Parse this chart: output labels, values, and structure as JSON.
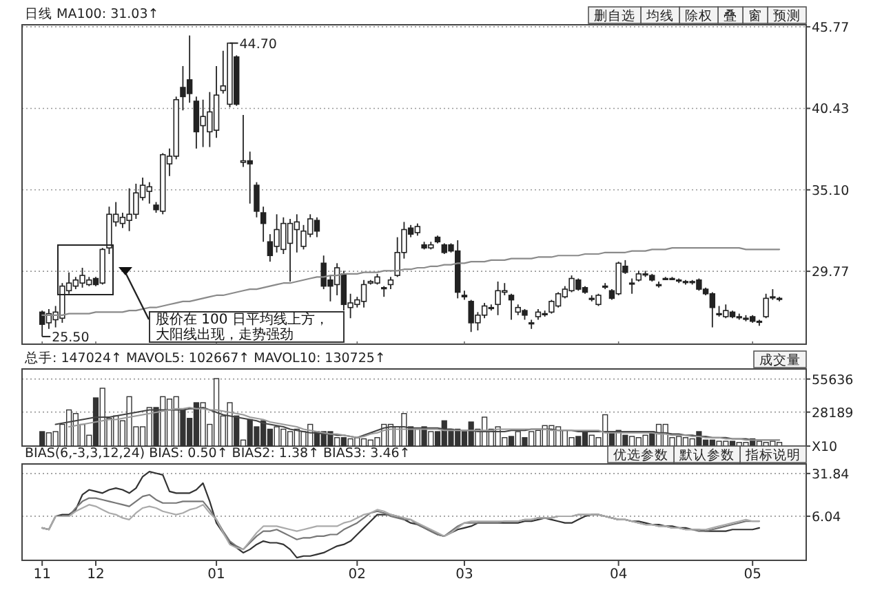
{
  "chart_data": [
    {
      "type": "candlestick",
      "title": "日线  MA100: 31.03↑",
      "categories": [
        "11",
        null,
        null,
        null,
        null,
        null,
        null,
        null,
        "12",
        null,
        null,
        null,
        null,
        null,
        null,
        null,
        null,
        null,
        null,
        null,
        null,
        null,
        null,
        null,
        null,
        null,
        "01",
        null,
        null,
        null,
        null,
        null,
        null,
        null,
        null,
        null,
        null,
        null,
        null,
        null,
        null,
        null,
        null,
        null,
        null,
        null,
        null,
        "02",
        null,
        null,
        null,
        null,
        null,
        null,
        null,
        null,
        null,
        null,
        null,
        null,
        null,
        null,
        null,
        "03",
        null,
        null,
        null,
        null,
        null,
        null,
        null,
        null,
        null,
        null,
        null,
        null,
        null,
        null,
        null,
        null,
        null,
        null,
        null,
        null,
        null,
        null,
        "04",
        null,
        null,
        null,
        null,
        null,
        null,
        null,
        null,
        null,
        null,
        null,
        null,
        null,
        null,
        null,
        null,
        null,
        null,
        null,
        "05",
        null,
        null,
        null,
        null
      ],
      "ohlc": [
        [
          27.1,
          27.2,
          25.5,
          26.3
        ],
        [
          26.4,
          27.3,
          26.0,
          27.0
        ],
        [
          26.6,
          27.5,
          26.1,
          27.1
        ],
        [
          26.7,
          29.0,
          26.4,
          28.8
        ],
        [
          28.5,
          29.7,
          28.3,
          29.0
        ],
        [
          28.8,
          29.4,
          28.6,
          29.2
        ],
        [
          29.0,
          30.0,
          28.7,
          29.5
        ],
        [
          28.9,
          29.4,
          28.8,
          29.2
        ],
        [
          29.3,
          29.4,
          28.8,
          28.9
        ],
        [
          29.0,
          31.3,
          28.9,
          31.2
        ],
        [
          31.3,
          34.0,
          30.9,
          33.5
        ],
        [
          33.0,
          34.3,
          32.7,
          33.5
        ],
        [
          32.9,
          33.6,
          32.6,
          33.3
        ],
        [
          33.1,
          35.2,
          32.4,
          33.5
        ],
        [
          33.5,
          35.5,
          33.2,
          34.9
        ],
        [
          34.6,
          35.9,
          34.4,
          35.4
        ],
        [
          35.0,
          35.6,
          34.2,
          35.3
        ],
        [
          34.1,
          34.3,
          33.6,
          33.8
        ],
        [
          33.7,
          37.5,
          33.5,
          37.4
        ],
        [
          36.8,
          37.8,
          36.0,
          37.3
        ],
        [
          37.3,
          41.2,
          37.1,
          41.0
        ],
        [
          41.8,
          43.2,
          40.3,
          41.2
        ],
        [
          42.3,
          45.2,
          40.8,
          41.4
        ],
        [
          40.9,
          41.2,
          37.8,
          38.9
        ],
        [
          39.3,
          41.0,
          37.9,
          39.9
        ],
        [
          38.9,
          41.5,
          37.9,
          40.2
        ],
        [
          39.0,
          43.2,
          38.5,
          41.3
        ],
        [
          41.6,
          44.2,
          41.4,
          41.9
        ],
        [
          40.7,
          44.7,
          40.5,
          44.7
        ],
        [
          43.8,
          43.9,
          40.6,
          40.7
        ],
        [
          36.9,
          40.0,
          36.6,
          37.0
        ],
        [
          37.0,
          37.6,
          34.2,
          36.8
        ],
        [
          35.4,
          35.6,
          33.3,
          33.7
        ],
        [
          33.6,
          34.0,
          31.7,
          32.9
        ],
        [
          31.7,
          32.2,
          30.4,
          30.8
        ],
        [
          31.4,
          33.5,
          31.0,
          32.5
        ],
        [
          31.2,
          33.3,
          30.9,
          32.9
        ],
        [
          31.6,
          33.2,
          29.1,
          32.9
        ],
        [
          32.5,
          33.5,
          31.0,
          33.0
        ],
        [
          31.4,
          32.8,
          31.2,
          32.4
        ],
        [
          32.2,
          33.5,
          32.0,
          33.2
        ],
        [
          33.1,
          33.3,
          32.0,
          32.4
        ],
        [
          30.3,
          30.8,
          28.6,
          28.8
        ],
        [
          29.2,
          29.5,
          27.8,
          28.8
        ],
        [
          28.9,
          30.3,
          28.2,
          30.0
        ],
        [
          29.6,
          29.8,
          27.2,
          27.6
        ],
        [
          27.4,
          28.3,
          26.7,
          27.7
        ],
        [
          27.6,
          28.1,
          27.4,
          27.9
        ],
        [
          27.8,
          29.2,
          27.4,
          28.9
        ],
        [
          29.0,
          29.2,
          28.9,
          29.1
        ],
        [
          29.0,
          29.6,
          28.9,
          29.4
        ],
        [
          28.7,
          28.8,
          28.1,
          28.7
        ],
        [
          28.9,
          29.4,
          28.6,
          29.2
        ],
        [
          29.5,
          32.0,
          29.4,
          31.0
        ],
        [
          31.0,
          33.0,
          30.6,
          32.5
        ],
        [
          32.6,
          32.8,
          32.0,
          32.2
        ],
        [
          32.3,
          32.9,
          32.1,
          32.7
        ],
        [
          31.5,
          31.7,
          31.2,
          31.3
        ],
        [
          31.3,
          31.7,
          31.2,
          31.5
        ],
        [
          32.0,
          32.1,
          31.6,
          31.7
        ],
        [
          31.5,
          31.6,
          30.9,
          31.0
        ],
        [
          31.5,
          31.6,
          31.0,
          31.1
        ],
        [
          31.1,
          31.8,
          28.0,
          28.4
        ],
        [
          28.2,
          28.5,
          27.9,
          28.1
        ],
        [
          27.8,
          27.9,
          25.8,
          26.4
        ],
        [
          26.4,
          27.1,
          25.9,
          26.9
        ],
        [
          26.9,
          27.7,
          26.7,
          27.5
        ],
        [
          27.4,
          27.6,
          27.2,
          27.4
        ],
        [
          27.6,
          29.1,
          26.9,
          28.5
        ],
        [
          28.4,
          29.0,
          28.2,
          28.5
        ],
        [
          28.2,
          28.3,
          26.6,
          27.9
        ],
        [
          27.1,
          27.6,
          26.9,
          27.4
        ],
        [
          27.2,
          27.3,
          26.6,
          26.9
        ],
        [
          26.4,
          26.6,
          26.0,
          26.4
        ],
        [
          26.8,
          27.3,
          26.6,
          27.1
        ],
        [
          27.0,
          27.2,
          26.8,
          27.0
        ],
        [
          27.1,
          27.9,
          27.0,
          27.8
        ],
        [
          27.5,
          28.4,
          27.4,
          28.3
        ],
        [
          28.1,
          28.8,
          28.0,
          28.6
        ],
        [
          28.5,
          29.5,
          28.4,
          29.3
        ],
        [
          29.2,
          29.3,
          28.5,
          28.6
        ],
        [
          28.7,
          28.8,
          28.3,
          28.4
        ],
        [
          28.0,
          28.2,
          27.8,
          28.0
        ],
        [
          27.6,
          28.3,
          27.5,
          28.2
        ],
        [
          28.8,
          29.0,
          28.6,
          28.8
        ],
        [
          28.5,
          28.6,
          27.9,
          28.0
        ],
        [
          28.3,
          30.4,
          28.2,
          30.3
        ],
        [
          30.1,
          30.5,
          29.6,
          29.7
        ],
        [
          29.0,
          29.3,
          28.3,
          29.0
        ],
        [
          29.2,
          29.8,
          29.1,
          29.6
        ],
        [
          29.6,
          29.8,
          29.4,
          29.6
        ],
        [
          29.5,
          29.6,
          29.1,
          29.2
        ],
        [
          28.9,
          29.1,
          28.7,
          28.9
        ],
        [
          29.3,
          29.4,
          29.2,
          29.3
        ],
        [
          29.3,
          29.4,
          29.2,
          29.3
        ],
        [
          29.2,
          29.3,
          29.0,
          29.2
        ],
        [
          29.1,
          29.2,
          28.9,
          29.1
        ],
        [
          29.1,
          29.2,
          28.9,
          29.1
        ],
        [
          29.2,
          29.3,
          28.5,
          28.6
        ],
        [
          28.6,
          28.7,
          28.2,
          28.3
        ],
        [
          28.3,
          28.4,
          26.1,
          27.4
        ],
        [
          27.0,
          27.5,
          26.8,
          27.0
        ],
        [
          26.8,
          27.6,
          26.7,
          27.2
        ],
        [
          27.1,
          27.2,
          26.7,
          26.8
        ],
        [
          26.8,
          27.0,
          26.6,
          26.8
        ],
        [
          26.7,
          26.9,
          26.5,
          26.7
        ],
        [
          26.8,
          26.9,
          26.4,
          26.5
        ],
        [
          26.5,
          26.6,
          26.2,
          26.5
        ],
        [
          26.8,
          28.3,
          26.7,
          28.0
        ],
        [
          28.1,
          28.6,
          27.9,
          28.1
        ],
        [
          28.0,
          28.1,
          27.8,
          28.0
        ]
      ],
      "series": [
        {
          "type": "line",
          "color": "#8a8a8a",
          "values": [
            26.9,
            26.9,
            26.9,
            26.9,
            27.0,
            27.0,
            27.0,
            27.0,
            27.1,
            27.1,
            27.1,
            27.1,
            27.1,
            27.2,
            27.2,
            27.3,
            27.4,
            27.4,
            27.5,
            27.6,
            27.7,
            27.8,
            27.8,
            27.9,
            28.0,
            28.1,
            28.2,
            28.2,
            28.3,
            28.4,
            28.5,
            28.6,
            28.6,
            28.7,
            28.8,
            28.9,
            29.0,
            29.0,
            29.1,
            29.2,
            29.3,
            29.4,
            29.4,
            29.5,
            29.5,
            29.6,
            29.6,
            29.6,
            29.7,
            29.7,
            29.7,
            29.8,
            29.8,
            29.8,
            29.9,
            29.9,
            30.0,
            30.0,
            30.1,
            30.1,
            30.2,
            30.2,
            30.3,
            30.3,
            30.4,
            30.4,
            30.4,
            30.5,
            30.5,
            30.5,
            30.6,
            30.6,
            30.6,
            30.6,
            30.7,
            30.7,
            30.7,
            30.8,
            30.8,
            30.8,
            30.8,
            30.9,
            30.9,
            30.9,
            31.0,
            31.0,
            31.0,
            31.0,
            31.1,
            31.1,
            31.1,
            31.2,
            31.2,
            31.2,
            31.3,
            31.3,
            31.3,
            31.3,
            31.3,
            31.3,
            31.3,
            31.3,
            31.3,
            31.3,
            31.3,
            31.2,
            31.2,
            31.2,
            31.2,
            31.2,
            31.2
          ]
        }
      ],
      "ylim": [
        25.0,
        45.9
      ],
      "yticks": [
        29.77,
        {
          "value": 35.1,
          "label": "35.10"
        },
        40.43,
        45.77
      ],
      "grid": "y",
      "tick_labels": "y",
      "annotations": [
        "删自选",
        "均线",
        "除权",
        "叠",
        "窗",
        "预测",
        "44.70",
        "25.50",
        "股价在 100 日平均线上方，大阳线出现，走势强劲"
      ]
    },
    {
      "type": "bar",
      "title": "总手: 147024↑  MAVOL5: 102667↑  MAVOL10: 130725↑",
      "categories": [
        "11",
        null,
        null,
        null,
        null,
        null,
        null,
        null,
        "12",
        null,
        null,
        null,
        null,
        null,
        null,
        null,
        null,
        null,
        null,
        null,
        null,
        null,
        null,
        null,
        null,
        null,
        "01",
        null,
        null,
        null,
        null,
        null,
        null,
        null,
        null,
        null,
        null,
        null,
        null,
        null,
        null,
        null,
        null,
        null,
        null,
        null,
        null,
        "02",
        null,
        null,
        null,
        null,
        null,
        null,
        null,
        null,
        null,
        null,
        null,
        null,
        null,
        null,
        null,
        "03",
        null,
        null,
        null,
        null,
        null,
        null,
        null,
        null,
        null,
        null,
        null,
        null,
        null,
        null,
        null,
        null,
        null,
        null,
        null,
        null,
        null,
        null,
        "04",
        null,
        null,
        null,
        null,
        null,
        null,
        null,
        null,
        null,
        null,
        null,
        null,
        null,
        null,
        null,
        null,
        null,
        null,
        null,
        "05",
        null,
        null,
        null,
        null
      ],
      "series": [
        {
          "type": "bar",
          "values": [
            12000,
            11000,
            12000,
            18000,
            30000,
            27000,
            18000,
            9000,
            40000,
            48000,
            23000,
            25000,
            21000,
            41000,
            16000,
            16000,
            32000,
            32000,
            41000,
            39000,
            41000,
            30000,
            23000,
            36000,
            36000,
            18000,
            56000,
            25000,
            36000,
            25000,
            5000,
            22000,
            16000,
            21000,
            14000,
            16000,
            14000,
            12000,
            14000,
            12000,
            18000,
            12000,
            12000,
            12000,
            7000,
            7000,
            6000,
            7000,
            6000,
            5000,
            7000,
            18000,
            18000,
            16000,
            27000,
            16000,
            14000,
            16000,
            12000,
            12000,
            21000,
            14000,
            14000,
            12000,
            20000,
            14000,
            24000,
            14000,
            16000,
            7000,
            8000,
            12000,
            7000,
            12000,
            13000,
            17000,
            17000,
            16000,
            13000,
            7000,
            8000,
            12000,
            9000,
            7000,
            26000,
            12000,
            13000,
            9000,
            8000,
            7000,
            9000,
            12000,
            18000,
            18000,
            7000,
            8000,
            7000,
            6000,
            12000,
            5000,
            5000,
            4000,
            4000,
            4000,
            3000,
            3000,
            6000,
            4000,
            3000,
            4000,
            3000
          ],
          "colors": [
            "#333333",
            "#ffffff",
            "#ffffff",
            "#ffffff",
            "#ffffff",
            "#ffffff",
            "#ffffff",
            "#ffffff",
            "#333333",
            "#ffffff",
            "#ffffff",
            "#ffffff",
            "#ffffff",
            "#ffffff",
            "#ffffff",
            "#ffffff",
            "#ffffff",
            "#333333",
            "#ffffff",
            "#ffffff",
            "#ffffff",
            "#333333",
            "#333333",
            "#333333",
            "#ffffff",
            "#ffffff",
            "#ffffff",
            "#ffffff",
            "#ffffff",
            "#333333",
            "#ffffff",
            "#333333",
            "#333333",
            "#333333",
            "#333333",
            "#ffffff",
            "#ffffff",
            "#ffffff",
            "#ffffff",
            "#ffffff",
            "#ffffff",
            "#333333",
            "#333333",
            "#333333",
            "#ffffff",
            "#333333",
            "#ffffff",
            "#ffffff",
            "#ffffff",
            "#ffffff",
            "#ffffff",
            "#ffffff",
            "#ffffff",
            "#ffffff",
            "#ffffff",
            "#333333",
            "#ffffff",
            "#333333",
            "#ffffff",
            "#333333",
            "#333333",
            "#333333",
            "#333333",
            "#333333",
            "#333333",
            "#ffffff",
            "#ffffff",
            "#ffffff",
            "#ffffff",
            "#ffffff",
            "#333333",
            "#ffffff",
            "#333333",
            "#ffffff",
            "#ffffff",
            "#ffffff",
            "#ffffff",
            "#ffffff",
            "#ffffff",
            "#ffffff",
            "#333333",
            "#333333",
            "#ffffff",
            "#ffffff",
            "#ffffff",
            "#333333",
            "#ffffff",
            "#333333",
            "#ffffff",
            "#ffffff",
            "#ffffff",
            "#333333",
            "#ffffff",
            "#ffffff",
            "#ffffff",
            "#ffffff",
            "#ffffff",
            "#ffffff",
            "#333333",
            "#333333",
            "#333333",
            "#ffffff",
            "#ffffff",
            "#333333",
            "#ffffff",
            "#ffffff",
            "#333333",
            "#ffffff",
            "#ffffff",
            "#ffffff",
            "#ffffff"
          ]
        },
        {
          "type": "line",
          "color": "#444444",
          "values": [
            null,
            null,
            18000,
            19000,
            20000,
            21000,
            22000,
            23000,
            24000,
            24000,
            24000,
            25000,
            26000,
            27000,
            28000,
            29000,
            30000,
            30000,
            30000,
            30000,
            30000,
            30000,
            31000,
            31000,
            32000,
            30000,
            28000,
            26000,
            25000,
            24000,
            23000,
            22000,
            21000,
            19000,
            18000,
            17000,
            16000,
            14000,
            13000,
            12000,
            11000,
            11000,
            10000,
            10000,
            9000,
            9000,
            8000,
            7000,
            9000,
            11000,
            13000,
            15000,
            16000,
            16000,
            16000,
            15000,
            15000,
            15000,
            15000,
            15000,
            14000,
            14000,
            13000,
            13000,
            13000,
            12000,
            12000,
            12000,
            12000,
            12000,
            13000,
            13000,
            13000,
            14000,
            14000,
            14000,
            14000,
            13000,
            13000,
            13000,
            12000,
            12000,
            12000,
            12000,
            12000,
            12000,
            12000,
            12000,
            12000,
            12000,
            12000,
            12000,
            11000,
            11000,
            10000,
            10000,
            9000,
            9000,
            8000,
            8000,
            7000,
            7000,
            7000,
            6000,
            6000,
            6000,
            5000,
            5000,
            5000,
            5000,
            5000
          ]
        },
        {
          "type": "line",
          "color": "#9a9a9a",
          "values": [
            null,
            null,
            null,
            null,
            16000,
            17000,
            18000,
            19000,
            20000,
            21000,
            22000,
            22000,
            23000,
            24000,
            25000,
            26000,
            27000,
            28000,
            29000,
            30000,
            31000,
            31000,
            32000,
            31000,
            31000,
            30000,
            30000,
            29000,
            28000,
            27000,
            26000,
            24000,
            23000,
            22000,
            20000,
            19000,
            18000,
            17000,
            16000,
            14000,
            13000,
            12000,
            11000,
            10000,
            10000,
            9000,
            8000,
            7000,
            8000,
            10000,
            11000,
            13000,
            14000,
            14000,
            14000,
            14000,
            14000,
            14000,
            14000,
            14000,
            13000,
            13000,
            13000,
            13000,
            13000,
            13000,
            13000,
            13000,
            14000,
            14000,
            14000,
            14000,
            14000,
            14000,
            14000,
            14000,
            13000,
            13000,
            13000,
            13000,
            13000,
            13000,
            13000,
            13000,
            11000,
            11000,
            11000,
            11000,
            11000,
            11000,
            11000,
            11000,
            10000,
            10000,
            9000,
            9000,
            9000,
            8000,
            8000,
            7000,
            7000,
            7000,
            6000,
            6000,
            6000,
            5000,
            5000,
            5000,
            5000,
            5000,
            5000
          ]
        }
      ],
      "ylim": [
        0,
        64000
      ],
      "yticks": [
        {
          "value": 0,
          "label": "X10"
        },
        28189,
        55636
      ],
      "grid": "y",
      "tick_labels": "y",
      "annotations": [
        "成交量"
      ]
    },
    {
      "type": "line",
      "title": "BIAS(6,-3,3,12,24) BIAS: 0.50↑ BIAS2: 1.38↑ BIAS3: 3.46↑",
      "categories": [
        "11",
        null,
        null,
        null,
        null,
        null,
        null,
        null,
        "12",
        null,
        null,
        null,
        null,
        null,
        null,
        null,
        null,
        null,
        null,
        null,
        null,
        null,
        null,
        null,
        null,
        null,
        "01",
        null,
        null,
        null,
        null,
        null,
        null,
        null,
        null,
        null,
        null,
        null,
        null,
        null,
        null,
        null,
        null,
        null,
        null,
        null,
        null,
        "02",
        null,
        null,
        null,
        null,
        null,
        null,
        null,
        null,
        null,
        null,
        null,
        null,
        null,
        null,
        null,
        "03",
        null,
        null,
        null,
        null,
        null,
        null,
        null,
        null,
        null,
        null,
        null,
        null,
        null,
        null,
        null,
        null,
        null,
        null,
        null,
        null,
        null,
        null,
        "04",
        null,
        null,
        null,
        null,
        null,
        null,
        null,
        null,
        null,
        null,
        null,
        null,
        null,
        null,
        null,
        null,
        null,
        null,
        null,
        "05",
        null,
        null,
        null,
        null
      ],
      "series": [
        {
          "color": "#333333",
          "values": [
            -1,
            -2,
            6,
            7,
            7,
            10,
            19,
            22,
            21,
            20,
            22,
            23,
            22,
            20,
            23,
            30,
            33,
            32,
            31,
            21,
            20,
            20,
            20,
            22,
            26,
            15,
            2,
            -4,
            -10,
            -13,
            -16,
            -14,
            -11,
            -9,
            -10,
            -10,
            -11,
            -14,
            -19,
            -18,
            -18,
            -17,
            -16,
            -14,
            -12,
            -11,
            -9,
            -5,
            -1,
            3,
            7,
            7,
            7,
            6,
            4,
            2,
            1,
            -1,
            -3,
            -5,
            -6,
            -4,
            -2,
            -1,
            0,
            2,
            2,
            2,
            2,
            2,
            2,
            2,
            3,
            3,
            4,
            5,
            4,
            3,
            2,
            2,
            4,
            6,
            7,
            7,
            6,
            5,
            4,
            4,
            3,
            3,
            2,
            1,
            1,
            0,
            0,
            -1,
            -1,
            -2,
            -2,
            -3,
            -3,
            -3,
            -3,
            -2,
            -2,
            -2,
            -2,
            -1,
            null,
            null,
            null
          ]
        },
        {
          "color": "#777777",
          "values": [
            -1,
            -2,
            6,
            6,
            6,
            11,
            15,
            17,
            17,
            16,
            15,
            14,
            13,
            12,
            15,
            18,
            19,
            16,
            14,
            14,
            14,
            15,
            15,
            15,
            15,
            10,
            4,
            -3,
            -9,
            -12,
            -14,
            -10,
            -6,
            -3,
            -3,
            -2,
            -4,
            -6,
            -8,
            -7,
            -7,
            -6,
            -6,
            -5,
            -5,
            -2,
            0,
            2,
            5,
            8,
            9,
            8,
            6,
            5,
            4,
            4,
            1,
            -1,
            -3,
            -5,
            -6,
            -3,
            0,
            2,
            2,
            2,
            2,
            2,
            2,
            3,
            3,
            3,
            4,
            4,
            5,
            5,
            5,
            6,
            6,
            6,
            7,
            7,
            7,
            7,
            6,
            5,
            4,
            4,
            3,
            2,
            1,
            1,
            0,
            0,
            -1,
            -1,
            -2,
            -2,
            -3,
            -3,
            -2,
            -1,
            0,
            1,
            2,
            3,
            3,
            3,
            null,
            null,
            null
          ]
        },
        {
          "color": "#aaaaaa",
          "values": [
            -1,
            -2,
            6,
            6,
            6,
            9,
            11,
            13,
            12,
            10,
            8,
            7,
            5,
            4,
            8,
            11,
            12,
            11,
            9,
            8,
            7,
            8,
            10,
            11,
            13,
            8,
            4,
            -4,
            -11,
            -13,
            -14,
            -9,
            -4,
            0,
            0,
            0,
            -1,
            -2,
            -3,
            -2,
            -1,
            0,
            0,
            0,
            0,
            2,
            3,
            5,
            7,
            8,
            10,
            9,
            7,
            6,
            5,
            4,
            2,
            0,
            -2,
            -4,
            -6,
            -4,
            -1,
            2,
            3,
            3,
            3,
            3,
            3,
            3,
            3,
            3,
            4,
            4,
            5,
            5,
            5,
            6,
            6,
            6,
            7,
            7,
            7,
            7,
            6,
            5,
            4,
            4,
            3,
            2,
            1,
            1,
            0,
            0,
            -1,
            -1,
            -2,
            -2,
            -2,
            -2,
            -1,
            0,
            1,
            2,
            3,
            4,
            3,
            3,
            null,
            null,
            null
          ]
        }
      ],
      "ylim": [
        -20.6,
        37.6
      ],
      "yticks": [
        6.04,
        31.84
      ],
      "grid": "y",
      "annotations": [
        "优选参数",
        "默认参数",
        "指标说明"
      ]
    }
  ]
}
